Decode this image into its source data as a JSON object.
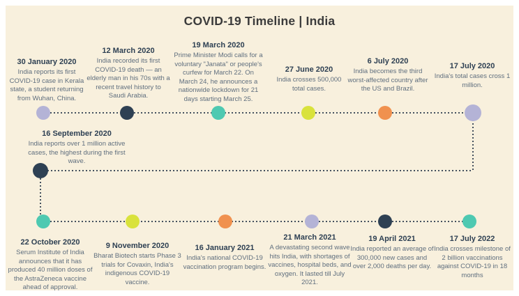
{
  "title": "COVID-19 Timeline | India",
  "colors": {
    "background": "#f8f0dd",
    "page_margin": "#ffffff",
    "lavender": "#b4b3d6",
    "navy": "#2e4053",
    "teal": "#4ec9b1",
    "lime": "#d9e23c",
    "orange": "#f0914f",
    "title_text": "#3b3b3b",
    "date_text": "#2e4053",
    "body_text": "#5f6e7e",
    "dotted_line": "#44505e"
  },
  "top_events": [
    {
      "date": "30 January 2020",
      "description": "India reports its first COVID-19 case in Kerala state, a student returning from Wuhan, China.",
      "dot_color": "#b4b3d6"
    },
    {
      "date": "12 March 2020",
      "description": "India recorded its first COVID-19 death — an elderly man in his 70s with a recent travel history to Saudi Arabia.",
      "dot_color": "#2e4053"
    },
    {
      "date": "19 March 2020",
      "description": "Prime Minister Modi calls for a voluntary \"Janata\" or people's curfew for March 22. On March 24, he announces a nationwide lockdown for 21 days starting March 25.",
      "dot_color": "#4ec9b1"
    },
    {
      "date": "27 June 2020",
      "description": "India crosses 500,000 total cases.",
      "dot_color": "#d9e23c"
    },
    {
      "date": "6 July 2020",
      "description": "India becomes the third worst-affected country after the US and Brazil.",
      "dot_color": "#f0914f"
    },
    {
      "date": "17 July 2020",
      "description": "India's total cases cross 1 million.",
      "dot_color": "#b4b3d6"
    }
  ],
  "middle_event": {
    "date": "16 September 2020",
    "description": "India reports over 1 million active cases, the highest during the first wave.",
    "dot_color": "#2e4053"
  },
  "bottom_events": [
    {
      "date": "22 October 2020",
      "description": "Serum Institute of India announces that it has produced 40 million doses of the AstraZeneca vaccine ahead of approval.",
      "dot_color": "#4ec9b1"
    },
    {
      "date": "9 November 2020",
      "description": "Bharat Biotech starts Phase 3 trials for Covaxin, India's indigenous COVID-19 vaccine.",
      "dot_color": "#d9e23c"
    },
    {
      "date": "16 January 2021",
      "description": "India's national COVID-19 vaccination program begins.",
      "dot_color": "#f0914f"
    },
    {
      "date": "21 March 2021",
      "description": "A devastating second wave hits India, with shortages of vaccines, hospital beds, and oxygen. It lasted till July 2021.",
      "dot_color": "#b4b3d6"
    },
    {
      "date": "19 April 2021",
      "description": "India reported an average of 300,000 new cases and over 2,000 deaths per day.",
      "dot_color": "#2e4053"
    },
    {
      "date": "17 July 2022",
      "description": "India crosses milestone of 2 billion vaccinations against COVID-19 in 18 months",
      "dot_color": "#4ec9b1"
    }
  ]
}
